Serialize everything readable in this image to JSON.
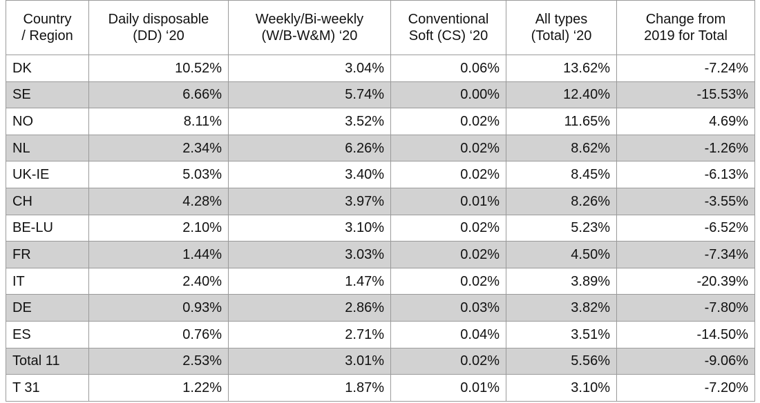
{
  "table": {
    "header": [
      [
        "Country",
        "/ Region"
      ],
      [
        "Daily disposable",
        "(DD) ‘20"
      ],
      [
        "Weekly/Bi-weekly",
        "(W/B-W&M) ‘20"
      ],
      [
        "Conventional",
        "Soft (CS) ‘20"
      ],
      [
        "All types",
        "(Total) ‘20"
      ],
      [
        "Change from",
        "2019 for Total"
      ]
    ],
    "rows": [
      [
        "DK",
        "10.52%",
        "3.04%",
        "0.06%",
        "13.62%",
        "-7.24%"
      ],
      [
        "SE",
        "6.66%",
        "5.74%",
        "0.00%",
        "12.40%",
        "-15.53%"
      ],
      [
        "NO",
        "8.11%",
        "3.52%",
        "0.02%",
        "11.65%",
        "4.69%"
      ],
      [
        "NL",
        "2.34%",
        "6.26%",
        "0.02%",
        "8.62%",
        "-1.26%"
      ],
      [
        "UK-IE",
        "5.03%",
        "3.40%",
        "0.02%",
        "8.45%",
        "-6.13%"
      ],
      [
        "CH",
        "4.28%",
        "3.97%",
        "0.01%",
        "8.26%",
        "-3.55%"
      ],
      [
        "BE-LU",
        "2.10%",
        "3.10%",
        "0.02%",
        "5.23%",
        "-6.52%"
      ],
      [
        "FR",
        "1.44%",
        "3.03%",
        "0.02%",
        "4.50%",
        "-7.34%"
      ],
      [
        "IT",
        "2.40%",
        "1.47%",
        "0.02%",
        "3.89%",
        "-20.39%"
      ],
      [
        "DE",
        "0.93%",
        "2.86%",
        "0.03%",
        "3.82%",
        "-7.80%"
      ],
      [
        "ES",
        "0.76%",
        "2.71%",
        "0.04%",
        "3.51%",
        "-14.50%"
      ],
      [
        "Total 11",
        "2.53%",
        "3.01%",
        "0.02%",
        "5.56%",
        "-9.06%"
      ],
      [
        "T 31",
        "1.22%",
        "1.87%",
        "0.01%",
        "3.10%",
        "-7.20%"
      ]
    ]
  }
}
